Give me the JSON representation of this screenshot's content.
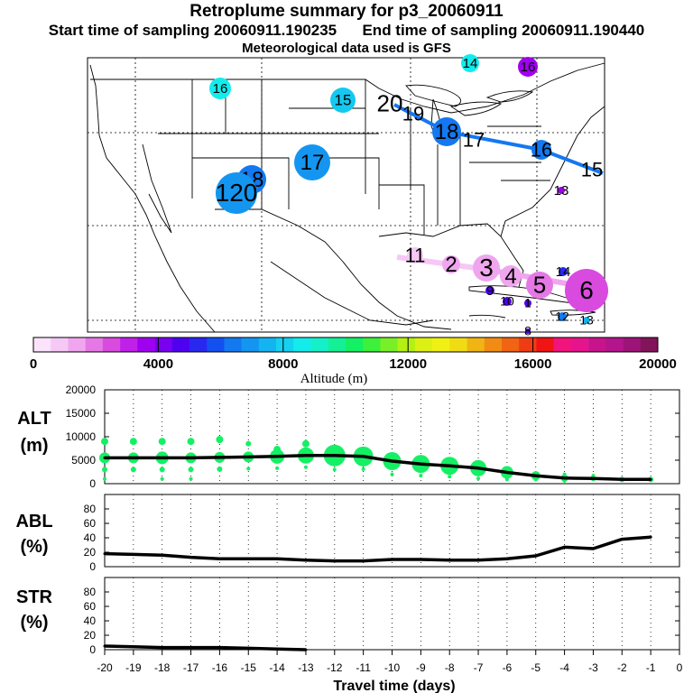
{
  "header": {
    "title": "Retroplume summary for p3_20060911",
    "sampling_line": "Start time of sampling 20060911.190235      End time of sampling 20060911.190440",
    "met_line": "Meteorological data used is GFS"
  },
  "colorbar": {
    "colors": [
      "#fbe3fb",
      "#f6c8f6",
      "#efa6ef",
      "#e678e6",
      "#d84bde",
      "#c020e8",
      "#a000f0",
      "#7a00f0",
      "#5000f0",
      "#2828f0",
      "#1450f0",
      "#1478f0",
      "#1496f0",
      "#14b4f0",
      "#14d2f0",
      "#14ecec",
      "#14f0c8",
      "#14f096",
      "#14f064",
      "#3cf03c",
      "#78f028",
      "#b4f014",
      "#dcf014",
      "#f0f014",
      "#f0dc14",
      "#f0b414",
      "#f08c14",
      "#f06414",
      "#f03c14",
      "#f01414",
      "#f0147c",
      "#e6148c",
      "#c8148c",
      "#b4148c",
      "#9c1478",
      "#82145a"
    ],
    "tick_labels": [
      "0",
      "4000",
      "8000",
      "12000",
      "16000",
      "20000"
    ],
    "label": "Altitude (m)"
  },
  "map": {
    "labels": [
      {
        "text": "16",
        "color": "#14ecec"
      },
      {
        "text": "15",
        "color": "#14c8f0"
      },
      {
        "text": "14",
        "color": "#14ecec"
      },
      {
        "text": "16",
        "color": "#a000f0"
      },
      {
        "text": "17",
        "color": "#1496f0"
      },
      {
        "text": "18",
        "color": "#1478f0"
      },
      {
        "text": "120",
        "color": "#1496f0"
      },
      {
        "text": "20",
        "color": "#14a0f0"
      },
      {
        "text": "19",
        "color": "#14a0f0"
      },
      {
        "text": "18",
        "color": "#1478f0"
      },
      {
        "text": "17",
        "color": "#1478f0"
      },
      {
        "text": "16",
        "color": "#1478f0"
      },
      {
        "text": "15",
        "color": "#1478f0"
      },
      {
        "text": "13",
        "color": "#a000f0"
      },
      {
        "text": "11",
        "color": "#f6c8f6"
      },
      {
        "text": "2",
        "color": "#efa6ef"
      },
      {
        "text": "3",
        "color": "#efa6ef"
      },
      {
        "text": "4",
        "color": "#efa6ef"
      },
      {
        "text": "5",
        "color": "#e678e6"
      },
      {
        "text": "6",
        "color": "#d84bde"
      },
      {
        "text": "14",
        "color": "#2828f0"
      },
      {
        "text": "9",
        "color": "#5000f0"
      },
      {
        "text": "10",
        "color": "#5000f0"
      },
      {
        "text": "1",
        "color": "#5000f0"
      },
      {
        "text": "12",
        "color": "#1478f0"
      },
      {
        "text": "13",
        "color": "#14b4f0"
      },
      {
        "text": "8",
        "color": "#5000f0"
      }
    ]
  },
  "chart_data": [
    {
      "type": "line",
      "panel": "ALT",
      "ylabel": "ALT (m)",
      "ylabel_lines": [
        "ALT",
        "(m)"
      ],
      "ylim": [
        0,
        20000
      ],
      "yticks": [
        0,
        5000,
        10000,
        15000,
        20000
      ],
      "x": [
        -20,
        -19,
        -18,
        -17,
        -16,
        -15,
        -14,
        -13,
        -12,
        -11,
        -10,
        -9,
        -8,
        -7,
        -6,
        -5,
        -4,
        -3,
        -2,
        -1
      ],
      "y": [
        5500,
        5500,
        5500,
        5500,
        5600,
        5700,
        5800,
        6000,
        6000,
        5800,
        4800,
        4200,
        3800,
        3300,
        2400,
        1700,
        1200,
        1100,
        900,
        900
      ],
      "scatter_color": "#14f064",
      "line_color": "#000000"
    },
    {
      "type": "line",
      "panel": "ABL",
      "ylabel": "ABL (%)",
      "ylabel_lines": [
        "ABL",
        "(%)"
      ],
      "ylim": [
        0,
        100
      ],
      "yticks": [
        0,
        20,
        40,
        60,
        80
      ],
      "x": [
        -20,
        -19,
        -18,
        -17,
        -16,
        -15,
        -14,
        -13,
        -12,
        -11,
        -10,
        -9,
        -8,
        -7,
        -6,
        -5,
        -4,
        -3,
        -2,
        -1
      ],
      "y": [
        18,
        17,
        16,
        13,
        11,
        11,
        11,
        9,
        8,
        8,
        10,
        10,
        9,
        9,
        11,
        15,
        27,
        25,
        38,
        41
      ]
    },
    {
      "type": "line",
      "panel": "STR",
      "ylabel": "STR (%)",
      "ylabel_lines": [
        "STR",
        "(%)"
      ],
      "ylim": [
        0,
        100
      ],
      "yticks": [
        0,
        20,
        40,
        60,
        80
      ],
      "x": [
        -20,
        -19,
        -18,
        -17,
        -16,
        -15,
        -14,
        -13,
        -12,
        -11,
        -10,
        -9,
        -8,
        -7,
        -6,
        -5,
        -4,
        -3,
        -2,
        -1
      ],
      "y": [
        5,
        4,
        3,
        3,
        3,
        2,
        1,
        0,
        0,
        0,
        0,
        0,
        0,
        0,
        0,
        0,
        0,
        0,
        0,
        0
      ]
    }
  ],
  "xaxis": {
    "tick_labels": [
      "-20",
      "-19",
      "-18",
      "-17",
      "-16",
      "-15",
      "-14",
      "-13",
      "-12",
      "-11",
      "-10",
      "-9",
      "-8",
      "-7",
      "-6",
      "-5",
      "-4",
      "-3",
      "-2",
      "-1",
      "0"
    ],
    "label": "Travel time (days)"
  }
}
